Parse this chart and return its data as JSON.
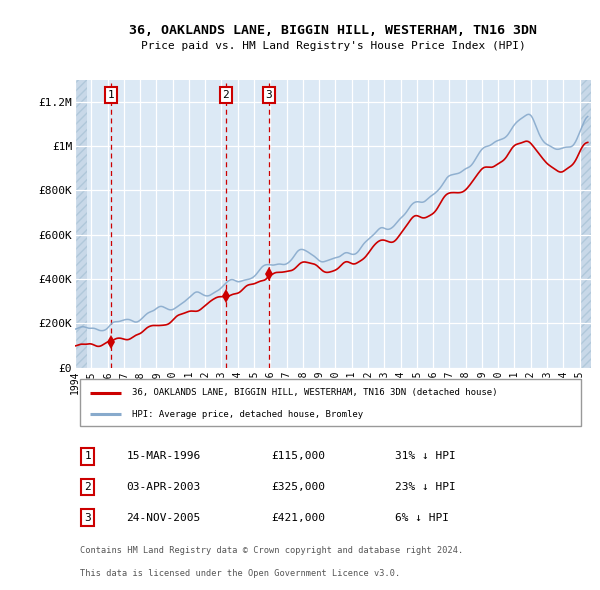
{
  "title": "36, OAKLANDS LANE, BIGGIN HILL, WESTERHAM, TN16 3DN",
  "subtitle": "Price paid vs. HM Land Registry's House Price Index (HPI)",
  "plot_bg": "#dce9f5",
  "grid_color": "#ffffff",
  "red_line_color": "#cc0000",
  "blue_line_color": "#88aacc",
  "ylabel_ticks": [
    "£0",
    "£200K",
    "£400K",
    "£600K",
    "£800K",
    "£1M",
    "£1.2M"
  ],
  "ytick_values": [
    0,
    200000,
    400000,
    600000,
    800000,
    1000000,
    1200000
  ],
  "ylim": [
    0,
    1300000
  ],
  "xlim_start": 1994.0,
  "xlim_end": 2025.7,
  "hatch_left_end": 1994.75,
  "hatch_right_start": 2025.0,
  "sale_dates": [
    1996.21,
    2003.26,
    2005.9
  ],
  "sale_prices": [
    115000,
    325000,
    421000
  ],
  "sale_labels": [
    "1",
    "2",
    "3"
  ],
  "legend_red": "36, OAKLANDS LANE, BIGGIN HILL, WESTERHAM, TN16 3DN (detached house)",
  "legend_blue": "HPI: Average price, detached house, Bromley",
  "table_rows": [
    [
      "1",
      "15-MAR-1996",
      "£115,000",
      "31% ↓ HPI"
    ],
    [
      "2",
      "03-APR-2003",
      "£325,000",
      "23% ↓ HPI"
    ],
    [
      "3",
      "24-NOV-2005",
      "£421,000",
      "6% ↓ HPI"
    ]
  ],
  "footnote1": "Contains HM Land Registry data © Crown copyright and database right 2024.",
  "footnote2": "This data is licensed under the Open Government Licence v3.0."
}
